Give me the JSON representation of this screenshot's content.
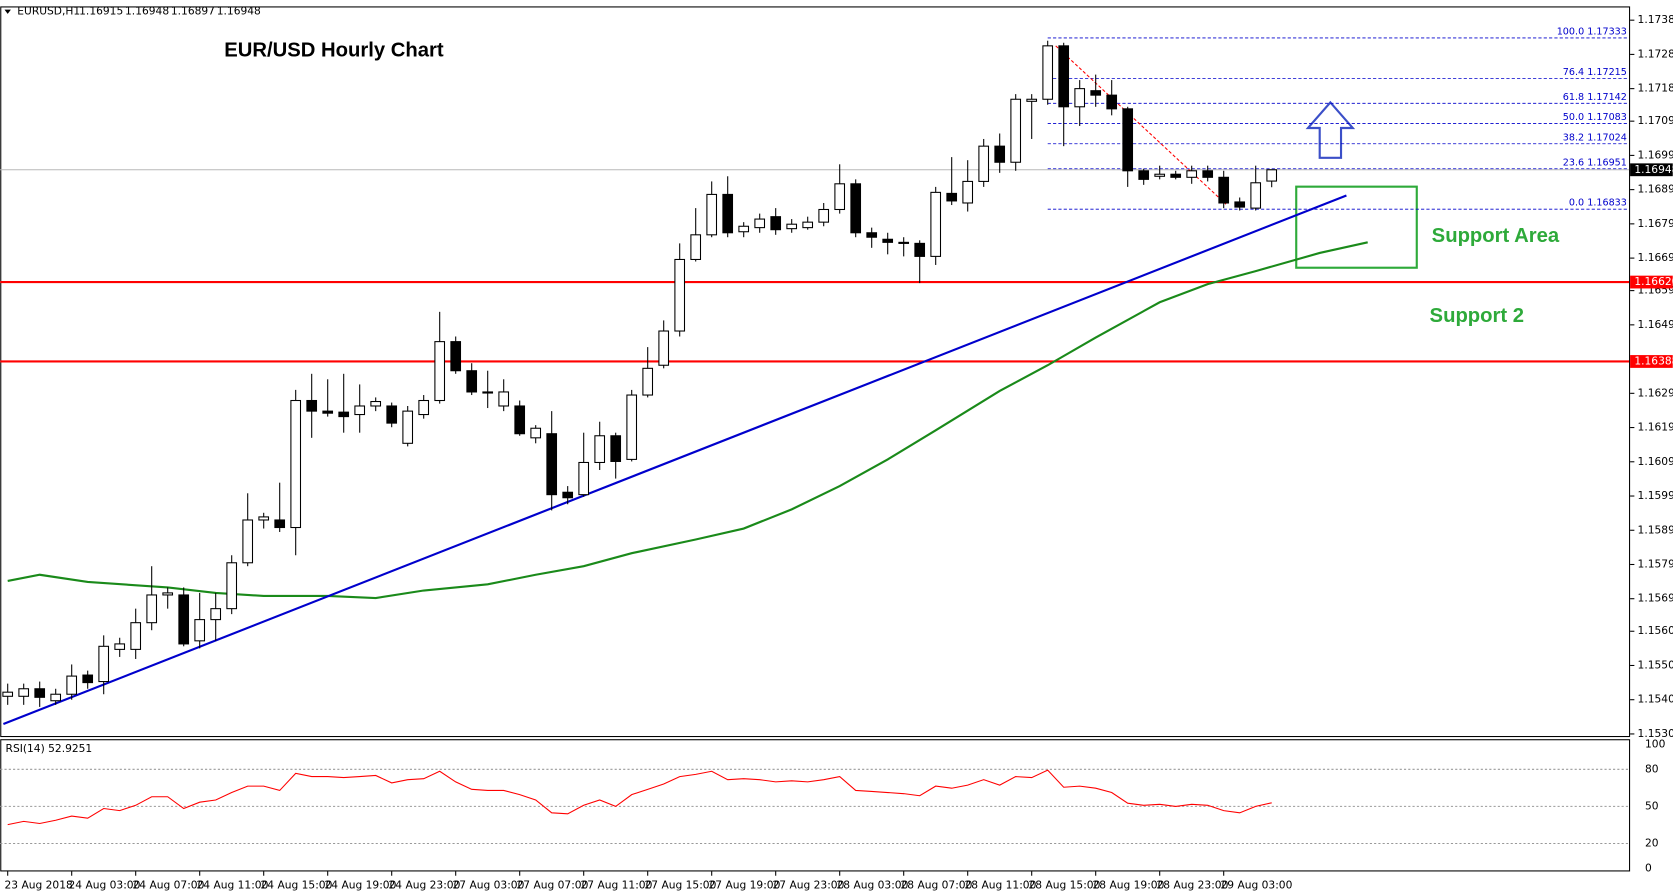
{
  "chart_data": {
    "type": "candlestick",
    "symbol": "EURUSD,H1",
    "title": "EUR/USD Hourly Chart",
    "annotations": [
      "Support Area",
      "Support 2"
    ],
    "x": [
      "23 Aug 2018",
      null,
      null,
      null,
      "24 Aug 03:00",
      null,
      null,
      null,
      "24 Aug 07:00",
      null,
      null,
      null,
      "24 Aug 11:00",
      null,
      null,
      null,
      "24 Aug 15:00",
      null,
      null,
      null,
      "24 Aug 19:00",
      null,
      null,
      null,
      "24 Aug 23:00",
      null,
      null,
      null,
      "27 Aug 03:00",
      null,
      null,
      null,
      "27 Aug 07:00",
      null,
      null,
      null,
      "27 Aug 11:00",
      null,
      null,
      null,
      "27 Aug 15:00",
      null,
      null,
      null,
      "27 Aug 19:00",
      null,
      null,
      null,
      "27 Aug 23:00",
      null,
      null,
      null,
      "28 Aug 03:00",
      null,
      null,
      null,
      "28 Aug 07:00",
      null,
      null,
      null,
      "28 Aug 11:00",
      null,
      null,
      null,
      "28 Aug 15:00",
      null,
      null,
      null,
      "28 Aug 19:00",
      null,
      null,
      null,
      "28 Aug 23:00",
      null,
      null,
      null,
      "29 Aug 03:00",
      null,
      null,
      null
    ],
    "ohlc": [
      [
        1.1541,
        1.15447,
        1.15385,
        1.15422
      ],
      [
        1.1541,
        1.15447,
        1.15385,
        1.15432
      ],
      [
        1.15432,
        1.15453,
        1.15379,
        1.15407
      ],
      [
        1.15397,
        1.15432,
        1.15385,
        1.15416
      ],
      [
        1.15416,
        1.15503,
        1.154,
        1.15469
      ],
      [
        1.15472,
        1.15485,
        1.15432,
        1.1545
      ],
      [
        1.15453,
        1.15588,
        1.15416,
        1.15556
      ],
      [
        1.15547,
        1.15581,
        1.15525,
        1.15563
      ],
      [
        1.15547,
        1.15666,
        1.15519,
        1.15625
      ],
      [
        1.15625,
        1.1579,
        1.15603,
        1.15706
      ],
      [
        1.15706,
        1.15728,
        1.15666,
        1.15712
      ],
      [
        1.15706,
        1.15728,
        1.15556,
        1.15563
      ],
      [
        1.15572,
        1.15712,
        1.1555,
        1.15634
      ],
      [
        1.15634,
        1.15712,
        1.15572,
        1.15666
      ],
      [
        1.15666,
        1.15822,
        1.1565,
        1.158
      ],
      [
        1.158,
        1.16003,
        1.1579,
        1.15925
      ],
      [
        1.15925,
        1.15946,
        1.159,
        1.15934
      ],
      [
        1.15925,
        1.16034,
        1.1589,
        1.15903
      ],
      [
        1.15903,
        1.16305,
        1.15822,
        1.16274
      ],
      [
        1.16274,
        1.16352,
        1.16165,
        1.16243
      ],
      [
        1.16243,
        1.16336,
        1.16227,
        1.16237
      ],
      [
        1.1624,
        1.16352,
        1.1618,
        1.16227
      ],
      [
        1.16233,
        1.16321,
        1.1618,
        1.16258
      ],
      [
        1.16258,
        1.16283,
        1.16243,
        1.16271
      ],
      [
        1.16258,
        1.16268,
        1.16196,
        1.16208
      ],
      [
        1.16149,
        1.16258,
        1.1614,
        1.16243
      ],
      [
        1.16233,
        1.1629,
        1.16221,
        1.16274
      ],
      [
        1.16274,
        1.16533,
        1.16265,
        1.16446
      ],
      [
        1.16446,
        1.16461,
        1.16352,
        1.16361
      ],
      [
        1.16361,
        1.16383,
        1.1629,
        1.16299
      ],
      [
        1.16299,
        1.16361,
        1.16252,
        1.16296
      ],
      [
        1.16258,
        1.16336,
        1.16243,
        1.16299
      ],
      [
        1.16258,
        1.16274,
        1.16171,
        1.16177
      ],
      [
        1.16165,
        1.16202,
        1.16149,
        1.16193
      ],
      [
        1.16177,
        1.16243,
        1.15953,
        1.15999
      ],
      [
        1.16006,
        1.16024,
        1.15971,
        1.1599
      ],
      [
        1.15999,
        1.1618,
        1.15993,
        1.16093
      ],
      [
        1.16093,
        1.16212,
        1.16071,
        1.16171
      ],
      [
        1.16171,
        1.1618,
        1.16046,
        1.16096
      ],
      [
        1.16102,
        1.16305,
        1.16096,
        1.1629
      ],
      [
        1.1629,
        1.1643,
        1.16283,
        1.16368
      ],
      [
        1.16377,
        1.16508,
        1.16368,
        1.16477
      ],
      [
        1.16477,
        1.16733,
        1.16461,
        1.16686
      ],
      [
        1.16686,
        1.16836,
        1.1668,
        1.16758
      ],
      [
        1.16758,
        1.16914,
        1.16751,
        1.16876
      ],
      [
        1.16876,
        1.16929,
        1.16751,
        1.16764
      ],
      [
        1.16767,
        1.16795,
        1.16751,
        1.16783
      ],
      [
        1.16779,
        1.1682,
        1.16764,
        1.16804
      ],
      [
        1.16811,
        1.16836,
        1.16758,
        1.16773
      ],
      [
        1.16776,
        1.16804,
        1.16764,
        1.16789
      ],
      [
        1.16779,
        1.16811,
        1.16773,
        1.16795
      ],
      [
        1.16795,
        1.16851,
        1.16783,
        1.16832
      ],
      [
        1.16832,
        1.16964,
        1.1682,
        1.16907
      ],
      [
        1.16907,
        1.1692,
        1.16751,
        1.16764
      ],
      [
        1.16764,
        1.16779,
        1.1672,
        1.16751
      ],
      [
        1.16745,
        1.16764,
        1.16701,
        1.16736
      ],
      [
        1.16736,
        1.16751,
        1.16695,
        1.16733
      ],
      [
        1.16733,
        1.16742,
        1.16617,
        1.16695
      ],
      [
        1.16695,
        1.16898,
        1.1667,
        1.16882
      ],
      [
        1.16879,
        1.16985,
        1.16845,
        1.16857
      ],
      [
        1.16851,
        1.16976,
        1.16826,
        1.16914
      ],
      [
        1.16914,
        1.17038,
        1.16898,
        1.17017
      ],
      [
        1.17017,
        1.17054,
        1.16939,
        1.1697
      ],
      [
        1.1697,
        1.17169,
        1.16945,
        1.17154
      ],
      [
        1.17148,
        1.17169,
        1.17038,
        1.17154
      ],
      [
        1.17154,
        1.17325,
        1.17138,
        1.1731
      ],
      [
        1.1731,
        1.17319,
        1.17017,
        1.17132
      ],
      [
        1.17132,
        1.1721,
        1.17076,
        1.17185
      ],
      [
        1.17179,
        1.17226,
        1.17132,
        1.17166
      ],
      [
        1.17166,
        1.1721,
        1.17107,
        1.17126
      ],
      [
        1.17126,
        1.17132,
        1.16898,
        1.16945
      ],
      [
        1.16945,
        1.16951,
        1.16904,
        1.1692
      ],
      [
        1.16929,
        1.1696,
        1.1692,
        1.16935
      ],
      [
        1.16935,
        1.16945,
        1.1692,
        1.16926
      ],
      [
        1.16926,
        1.1696,
        1.16907,
        1.16945
      ],
      [
        1.16945,
        1.1696,
        1.16914,
        1.16926
      ],
      [
        1.16926,
        1.16945,
        1.16836,
        1.16851
      ],
      [
        1.16854,
        1.16867,
        1.16829,
        1.16839
      ],
      [
        1.16836,
        1.1696,
        1.16829,
        1.1691
      ],
      [
        1.16915,
        1.16948,
        1.16897,
        1.16948
      ]
    ],
    "colors": {
      "up": "#ffffff",
      "down": "#000000"
    },
    "ylim": [
      1.15294,
      1.17419
    ],
    "yticks": [
      1.17385,
      1.17285,
      1.17185,
      {
        "value": 1.1709,
        "label": "1.17090"
      },
      {
        "value": 1.1699,
        "label": "1.16990"
      },
      {
        "value": 1.1689,
        "label": "1.16890"
      },
      {
        "value": 1.1679,
        "label": "1.16790"
      },
      {
        "value": 1.1669,
        "label": "1.16690"
      },
      1.16595,
      1.16495,
      1.16295,
      1.16195,
      1.16095,
      1.15995,
      1.15895,
      1.15795,
      1.15695,
      {
        "value": 1.156,
        "label": "1.15600"
      },
      {
        "value": 1.155,
        "label": "1.15500"
      },
      {
        "value": 1.154,
        "label": "1.15400"
      },
      {
        "value": 1.153,
        "label": "1.15300"
      }
    ],
    "moving_average": {
      "color": "#1a8a1a",
      "x": [
        0,
        2,
        5,
        10,
        13,
        16,
        20,
        23,
        26,
        30,
        33,
        36,
        39,
        43,
        46,
        49,
        52,
        55,
        58,
        62,
        65,
        68,
        72,
        75,
        78,
        82,
        85
      ],
      "values": [
        1.15747,
        1.15765,
        1.15744,
        1.15728,
        1.15712,
        1.15703,
        1.15703,
        1.15697,
        1.15719,
        1.15737,
        1.15765,
        1.1579,
        1.15828,
        1.15868,
        1.159,
        1.15956,
        1.16024,
        1.16102,
        1.16187,
        1.16302,
        1.16377,
        1.16458,
        1.16561,
        1.16614,
        1.16652,
        1.16705,
        1.16736
      ]
    },
    "trendline": {
      "color": "#0000cc",
      "x": [
        -0.27,
        83.67
      ],
      "values": [
        1.15329,
        1.16873
      ]
    },
    "levels": {
      "color": "#ff0000",
      "lines": [
        {
          "value": 1.1662,
          "label": "1.16620"
        },
        {
          "value": 1.16388,
          "label": "1.16388"
        }
      ]
    },
    "fibonacci": {
      "color": "#0000cc",
      "start": 65,
      "levels": [
        {
          "value": 1.17333,
          "label": "100.0 1.17333"
        },
        {
          "value": 1.17215,
          "label": "76.4 1.17215"
        },
        {
          "value": 1.17142,
          "label": "61.8 1.17142"
        },
        {
          "value": 1.17083,
          "label": "50.0 1.17083"
        },
        {
          "value": 1.17024,
          "label": "38.2 1.17024"
        },
        {
          "value": 1.16951,
          "label": "23.6 1.16951"
        },
        {
          "value": 1.16833,
          "label": "0.0 1.16833"
        }
      ],
      "diagonal": {
        "color": "#ff0000",
        "x": [
          65.5,
          76.2
        ],
        "values": [
          1.1731,
          1.16845
        ]
      }
    },
    "rsi": {
      "title": "RSI(14) 52.9251",
      "color": "#ff0000",
      "ylim": [
        0,
        100
      ],
      "yticks": [
        100,
        80,
        50,
        20,
        0
      ],
      "values": [
        35.3,
        37.9,
        36.2,
        38.8,
        42.2,
        40.5,
        48.3,
        46.6,
        50.9,
        57.8,
        57.8,
        48.3,
        53.4,
        55.2,
        61.2,
        66.4,
        66.4,
        62.9,
        76.7,
        74.1,
        74.1,
        73.3,
        74.1,
        75.0,
        69.0,
        71.6,
        72.4,
        78.4,
        69.8,
        63.8,
        62.9,
        62.9,
        59.5,
        55.2,
        44.8,
        44.0,
        50.9,
        55.2,
        50.0,
        59.5,
        63.8,
        68.1,
        74.1,
        75.9,
        78.4,
        71.6,
        72.4,
        71.6,
        69.8,
        70.7,
        69.8,
        71.6,
        74.1,
        62.9,
        62.1,
        61.2,
        60.3,
        58.6,
        66.4,
        64.7,
        67.2,
        71.6,
        67.2,
        74.1,
        73.3,
        79.3,
        65.5,
        66.4,
        64.7,
        61.2,
        52.6,
        50.9,
        51.7,
        50.0,
        51.7,
        50.9,
        46.6,
        44.8,
        50.0,
        52.9
      ]
    }
  }
}
